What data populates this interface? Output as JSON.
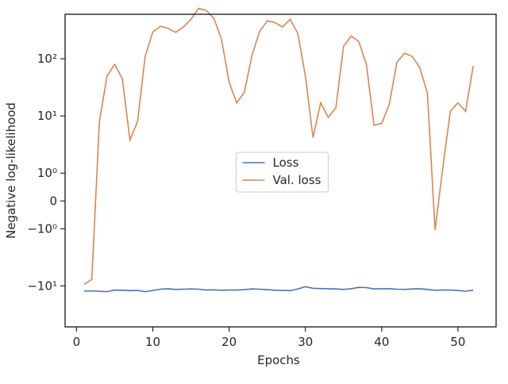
{
  "chart_data": {
    "type": "line",
    "xlabel": "Epochs",
    "ylabel": "Negative log-likelihood",
    "yscale": "symlog",
    "linthresh": 1,
    "x": [
      1,
      2,
      3,
      4,
      5,
      6,
      7,
      8,
      9,
      10,
      11,
      12,
      13,
      14,
      15,
      16,
      17,
      18,
      19,
      20,
      21,
      22,
      23,
      24,
      25,
      26,
      27,
      28,
      29,
      30,
      31,
      32,
      33,
      34,
      35,
      36,
      37,
      38,
      39,
      40,
      41,
      42,
      43,
      44,
      45,
      46,
      47,
      48,
      49,
      50,
      51,
      52
    ],
    "series": [
      {
        "name": "Loss",
        "color": "#4c72b0",
        "values": [
          -12.3,
          -12.2,
          -12.4,
          -12.6,
          -11.8,
          -11.9,
          -12.1,
          -12.0,
          -12.6,
          -12.0,
          -11.4,
          -11.2,
          -11.5,
          -11.4,
          -11.3,
          -11.4,
          -11.8,
          -11.7,
          -11.9,
          -11.8,
          -11.8,
          -11.6,
          -11.3,
          -11.4,
          -11.6,
          -11.9,
          -12.0,
          -12.1,
          -11.3,
          -10.3,
          -11.0,
          -11.1,
          -11.2,
          -11.3,
          -11.5,
          -11.2,
          -10.6,
          -10.7,
          -11.3,
          -11.2,
          -11.2,
          -11.4,
          -11.5,
          -11.3,
          -11.2,
          -11.5,
          -11.9,
          -11.8,
          -11.8,
          -12.0,
          -12.4,
          -11.9
        ]
      },
      {
        "name": "Val. loss",
        "color": "#dd8452",
        "values": [
          -9.4,
          -7.7,
          8,
          50,
          80,
          45,
          3.8,
          8,
          110,
          295,
          370,
          340,
          290,
          360,
          490,
          760,
          700,
          510,
          220,
          39,
          17,
          26,
          115,
          300,
          460,
          430,
          360,
          490,
          280,
          50,
          4.2,
          17,
          9.5,
          14,
          165,
          250,
          200,
          80,
          6.9,
          7.4,
          16,
          87,
          125,
          110,
          70,
          25,
          -1.05,
          1.2,
          12,
          17,
          12,
          75
        ]
      }
    ],
    "xlim": [
      -1.5,
      55
    ],
    "xticks": [
      0,
      10,
      20,
      30,
      40,
      50
    ],
    "ylim": [
      -52,
      600
    ],
    "yticks": [
      {
        "value": -10,
        "label": "−10¹"
      },
      {
        "value": -1,
        "label": "−10⁰"
      },
      0,
      {
        "value": 1,
        "label": "10⁰"
      },
      {
        "value": 10,
        "label": "10¹"
      },
      {
        "value": 100,
        "label": "10²"
      }
    ],
    "legend": "center"
  }
}
